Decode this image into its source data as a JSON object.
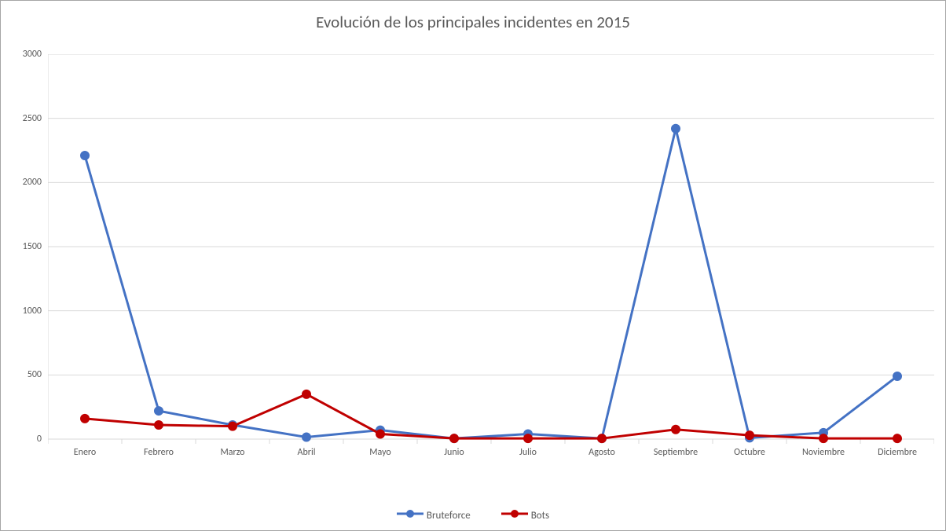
{
  "chart": {
    "type": "line",
    "title": "Evolución de los principales incidentes en 2015",
    "title_fontsize": 21,
    "title_color": "#595959",
    "background_color": "#ffffff",
    "border_color": "#a6a6a6",
    "grid_color": "#d9d9d9",
    "label_color": "#595959",
    "label_fontsize": 12,
    "ylim": [
      0,
      3000
    ],
    "ytick_step": 500,
    "yticks": [
      0,
      500,
      1000,
      1500,
      2000,
      2500,
      3000
    ],
    "categories": [
      "Enero",
      "Febrero",
      "Marzo",
      "Abril",
      "Mayo",
      "Junio",
      "Julio",
      "Agosto",
      "Septiembre",
      "Octubre",
      "Noviembre",
      "Diciembre"
    ],
    "line_width": 3,
    "marker_radius": 5,
    "series": [
      {
        "name": "Bruteforce",
        "color": "#4472c4",
        "marker_fill": "#4472c4",
        "marker_stroke": "#4472c4",
        "values": [
          2210,
          220,
          110,
          15,
          70,
          5,
          40,
          5,
          2420,
          10,
          50,
          490
        ]
      },
      {
        "name": "Bots",
        "color": "#c00000",
        "marker_fill": "#c00000",
        "marker_stroke": "#c00000",
        "values": [
          160,
          110,
          100,
          350,
          40,
          5,
          5,
          5,
          75,
          30,
          5,
          5
        ]
      }
    ],
    "legend_position": "bottom"
  }
}
